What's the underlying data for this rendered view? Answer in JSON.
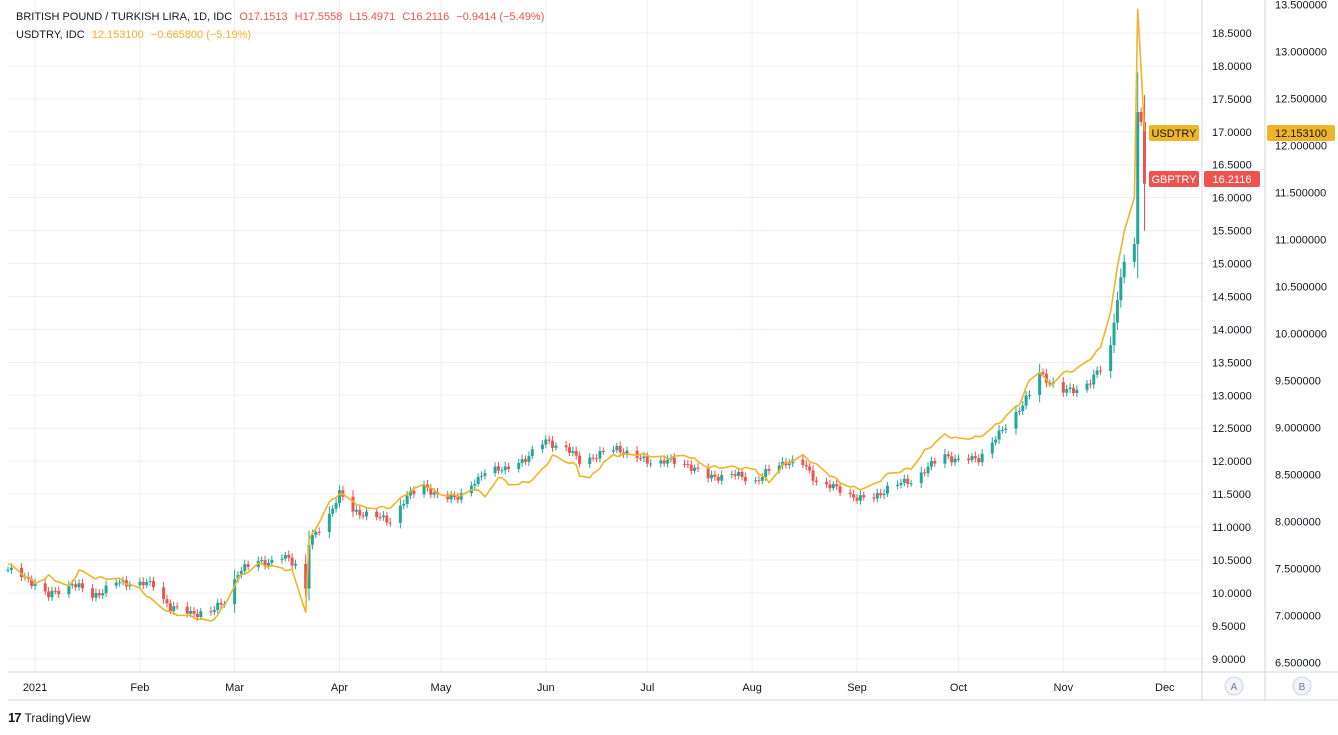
{
  "legend": {
    "main_name": "BRITISH POUND / TURKISH LIRA, 1D, IDC",
    "main_o": "O17.1513",
    "main_h": "H17.5558",
    "main_l": "L15.4971",
    "main_c": "C16.2116",
    "main_chg": "−0.9414 (−5.49%)",
    "second_name": "USDTRY, IDC",
    "second_val": "12.153100",
    "second_chg": "−0.665800 (−5.19%)"
  },
  "branding": {
    "name": "TradingView"
  },
  "scale_buttons": {
    "a": "A",
    "b": "B"
  },
  "colors": {
    "up": "#26a69a",
    "down": "#ef5350",
    "line": "#f0b429",
    "grid": "#eceff2",
    "axis_text": "#131722"
  },
  "chart_data": {
    "type": "candlestick+line",
    "x_axis": {
      "range": [
        "2020-12-24",
        "2021-12-12"
      ],
      "labels": [
        {
          "text": "2021",
          "date": "2021-01-01"
        },
        {
          "text": "Feb",
          "date": "2021-02-01"
        },
        {
          "text": "Mar",
          "date": "2021-03-01"
        },
        {
          "text": "Apr",
          "date": "2021-04-01"
        },
        {
          "text": "May",
          "date": "2021-05-01"
        },
        {
          "text": "Jun",
          "date": "2021-06-01"
        },
        {
          "text": "Jul",
          "date": "2021-07-01"
        },
        {
          "text": "Aug",
          "date": "2021-08-01"
        },
        {
          "text": "Sep",
          "date": "2021-09-01"
        },
        {
          "text": "Oct",
          "date": "2021-10-01"
        },
        {
          "text": "Nov",
          "date": "2021-11-01"
        },
        {
          "text": "Dec",
          "date": "2021-12-01"
        }
      ]
    },
    "y_axis_left": {
      "range": [
        8.8,
        19.0
      ],
      "ticks": [
        "9.0000",
        "9.5000",
        "10.0000",
        "10.5000",
        "11.0000",
        "11.5000",
        "12.0000",
        "12.5000",
        "13.0000",
        "13.5000",
        "14.0000",
        "14.5000",
        "15.0000",
        "15.5000",
        "16.0000",
        "16.5000",
        "17.0000",
        "17.5000",
        "18.0000",
        "18.5000"
      ]
    },
    "y_axis_right": {
      "range": [
        6.4,
        13.55
      ],
      "ticks": [
        "6.500000",
        "7.000000",
        "7.500000",
        "8.000000",
        "8.500000",
        "9.000000",
        "9.500000",
        "10.000000",
        "10.500000",
        "11.000000",
        "11.500000",
        "12.000000",
        "12.500000",
        "13.000000",
        "13.500000"
      ]
    },
    "series": [
      {
        "name": "GBPTRY",
        "kind": "candles",
        "last_value": "16.2116",
        "anchors": [
          [
            "2020-12-24",
            10.35
          ],
          [
            "2021-01-01",
            10.15
          ],
          [
            "2021-01-05",
            9.95
          ],
          [
            "2021-01-12",
            10.15
          ],
          [
            "2021-01-18",
            9.95
          ],
          [
            "2021-01-25",
            10.15
          ],
          [
            "2021-02-01",
            10.15
          ],
          [
            "2021-02-05",
            10.12
          ],
          [
            "2021-02-10",
            9.78
          ],
          [
            "2021-02-15",
            9.7
          ],
          [
            "2021-02-22",
            9.7
          ],
          [
            "2021-02-26",
            9.88
          ],
          [
            "2021-03-02",
            10.3
          ],
          [
            "2021-03-08",
            10.5
          ],
          [
            "2021-03-12",
            10.45
          ],
          [
            "2021-03-16",
            10.55
          ],
          [
            "2021-03-19",
            10.45
          ],
          [
            "2021-03-22",
            10.05
          ],
          [
            "2021-03-23",
            10.75
          ],
          [
            "2021-03-29",
            11.2
          ],
          [
            "2021-04-01",
            11.5
          ],
          [
            "2021-04-05",
            11.25
          ],
          [
            "2021-04-12",
            11.15
          ],
          [
            "2021-04-16",
            11.1
          ],
          [
            "2021-04-21",
            11.45
          ],
          [
            "2021-04-26",
            11.65
          ],
          [
            "2021-05-01",
            11.4
          ],
          [
            "2021-05-07",
            11.5
          ],
          [
            "2021-05-12",
            11.7
          ],
          [
            "2021-05-15",
            11.95
          ],
          [
            "2021-05-20",
            11.85
          ],
          [
            "2021-05-26",
            12.05
          ],
          [
            "2021-06-01",
            12.3
          ],
          [
            "2021-06-07",
            12.2
          ],
          [
            "2021-06-11",
            12.0
          ],
          [
            "2021-06-17",
            12.1
          ],
          [
            "2021-06-22",
            12.2
          ],
          [
            "2021-06-28",
            12.05
          ],
          [
            "2021-07-01",
            12.0
          ],
          [
            "2021-07-07",
            12.0
          ],
          [
            "2021-07-13",
            11.95
          ],
          [
            "2021-07-19",
            11.75
          ],
          [
            "2021-07-26",
            11.8
          ],
          [
            "2021-08-02",
            11.7
          ],
          [
            "2021-08-06",
            11.85
          ],
          [
            "2021-08-11",
            12.0
          ],
          [
            "2021-08-16",
            11.95
          ],
          [
            "2021-08-20",
            11.7
          ],
          [
            "2021-08-25",
            11.6
          ],
          [
            "2021-09-01",
            11.45
          ],
          [
            "2021-09-05",
            11.4
          ],
          [
            "2021-09-10",
            11.6
          ],
          [
            "2021-09-17",
            11.7
          ],
          [
            "2021-09-22",
            11.9
          ],
          [
            "2021-09-27",
            12.1
          ],
          [
            "2021-10-01",
            12.0
          ],
          [
            "2021-10-07",
            12.05
          ],
          [
            "2021-10-13",
            12.4
          ],
          [
            "2021-10-19",
            12.8
          ],
          [
            "2021-10-22",
            13.0
          ],
          [
            "2021-10-25",
            13.35
          ],
          [
            "2021-10-28",
            13.2
          ],
          [
            "2021-11-01",
            13.05
          ],
          [
            "2021-11-05",
            13.1
          ],
          [
            "2021-11-09",
            13.2
          ],
          [
            "2021-11-12",
            13.4
          ],
          [
            "2021-11-15",
            13.75
          ],
          [
            "2021-11-17",
            14.5
          ],
          [
            "2021-11-19",
            15.0
          ],
          [
            "2021-11-22",
            15.3
          ],
          [
            "2021-11-23",
            17.3
          ],
          [
            "2021-11-24",
            17.15
          ],
          [
            "2021-11-25",
            16.2116
          ]
        ]
      },
      {
        "name": "USDTRY",
        "kind": "line",
        "last_value": "12.153100",
        "anchors": [
          [
            "2020-12-24",
            7.55
          ],
          [
            "2020-12-28",
            7.45
          ],
          [
            "2021-01-01",
            7.35
          ],
          [
            "2021-01-05",
            7.42
          ],
          [
            "2021-01-11",
            7.3
          ],
          [
            "2021-01-14",
            7.48
          ],
          [
            "2021-01-19",
            7.4
          ],
          [
            "2021-01-25",
            7.4
          ],
          [
            "2021-02-01",
            7.28
          ],
          [
            "2021-02-05",
            7.15
          ],
          [
            "2021-02-10",
            7.03
          ],
          [
            "2021-02-15",
            7.0
          ],
          [
            "2021-02-22",
            6.93
          ],
          [
            "2021-02-26",
            7.1
          ],
          [
            "2021-03-02",
            7.4
          ],
          [
            "2021-03-08",
            7.55
          ],
          [
            "2021-03-12",
            7.52
          ],
          [
            "2021-03-18",
            7.48
          ],
          [
            "2021-03-22",
            7.05
          ],
          [
            "2021-03-23",
            7.8
          ],
          [
            "2021-03-29",
            8.2
          ],
          [
            "2021-04-01",
            8.3
          ],
          [
            "2021-04-08",
            8.15
          ],
          [
            "2021-04-16",
            8.15
          ],
          [
            "2021-04-21",
            8.3
          ],
          [
            "2021-04-26",
            8.4
          ],
          [
            "2021-05-01",
            8.28
          ],
          [
            "2021-05-07",
            8.28
          ],
          [
            "2021-05-12",
            8.35
          ],
          [
            "2021-05-14",
            8.25
          ],
          [
            "2021-05-18",
            8.48
          ],
          [
            "2021-05-22",
            8.38
          ],
          [
            "2021-05-29",
            8.45
          ],
          [
            "2021-06-03",
            8.7
          ],
          [
            "2021-06-10",
            8.6
          ],
          [
            "2021-06-12",
            8.4
          ],
          [
            "2021-06-15",
            8.5
          ],
          [
            "2021-06-20",
            8.7
          ],
          [
            "2021-06-28",
            8.72
          ],
          [
            "2021-07-07",
            8.68
          ],
          [
            "2021-07-13",
            8.7
          ],
          [
            "2021-07-19",
            8.58
          ],
          [
            "2021-07-26",
            8.58
          ],
          [
            "2021-08-02",
            8.55
          ],
          [
            "2021-08-06",
            8.42
          ],
          [
            "2021-08-10",
            8.6
          ],
          [
            "2021-08-16",
            8.7
          ],
          [
            "2021-08-20",
            8.6
          ],
          [
            "2021-08-27",
            8.42
          ],
          [
            "2021-09-01",
            8.35
          ],
          [
            "2021-09-05",
            8.36
          ],
          [
            "2021-09-10",
            8.5
          ],
          [
            "2021-09-17",
            8.57
          ],
          [
            "2021-09-21",
            8.75
          ],
          [
            "2021-09-27",
            8.92
          ],
          [
            "2021-10-01",
            8.88
          ],
          [
            "2021-10-07",
            8.9
          ],
          [
            "2021-10-13",
            9.05
          ],
          [
            "2021-10-19",
            9.25
          ],
          [
            "2021-10-22",
            9.5
          ],
          [
            "2021-10-25",
            9.6
          ],
          [
            "2021-10-28",
            9.45
          ],
          [
            "2021-11-01",
            9.58
          ],
          [
            "2021-11-05",
            9.62
          ],
          [
            "2021-11-08",
            9.7
          ],
          [
            "2021-11-12",
            9.85
          ],
          [
            "2021-11-15",
            10.25
          ],
          [
            "2021-11-17",
            10.7
          ],
          [
            "2021-11-19",
            11.1
          ],
          [
            "2021-11-22",
            11.45
          ],
          [
            "2021-11-23",
            13.45
          ],
          [
            "2021-11-24",
            12.82
          ],
          [
            "2021-11-25",
            12.1531
          ]
        ]
      }
    ]
  }
}
